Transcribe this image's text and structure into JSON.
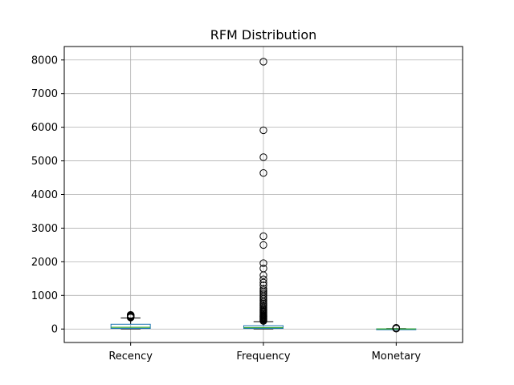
{
  "chart_data": {
    "type": "box",
    "title": "RFM Distribution",
    "xlabel": "",
    "ylabel": "",
    "grid": true,
    "ylim": [
      -400,
      8400
    ],
    "yticks": [
      0,
      1000,
      2000,
      3000,
      4000,
      5000,
      6000,
      7000,
      8000
    ],
    "categories": [
      "Recency",
      "Frequency",
      "Monetary"
    ],
    "boxes": [
      {
        "name": "Recency",
        "whisker_low": 1,
        "q1": 17,
        "median": 50,
        "q3": 142,
        "whisker_high": 330,
        "outliers": [
          340,
          350,
          360,
          370,
          380,
          390,
          400,
          410,
          420
        ]
      },
      {
        "name": "Frequency",
        "whisker_low": 1,
        "q1": 17,
        "median": 41,
        "q3": 100,
        "whisker_high": 220,
        "outliers": [
          240,
          260,
          280,
          300,
          320,
          340,
          360,
          380,
          400,
          420,
          450,
          480,
          510,
          540,
          570,
          600,
          640,
          680,
          720,
          760,
          800,
          850,
          900,
          950,
          1000,
          1050,
          1100,
          1150,
          1200,
          1300,
          1380,
          1480,
          1600,
          1800,
          1960,
          2500,
          2760,
          4640,
          5110,
          5910,
          7950
        ]
      },
      {
        "name": "Monetary",
        "whisker_low": 1,
        "q1": 2,
        "median": 3,
        "q3": 5,
        "whisker_high": 11,
        "outliers": [
          13,
          16,
          20,
          25,
          30,
          35
        ]
      }
    ],
    "colors": {
      "box": "#1f77b4",
      "median": "#2ca02c",
      "whisker": "#000000",
      "grid": "#b0b0b0",
      "outlier_edge": "#000000"
    }
  }
}
